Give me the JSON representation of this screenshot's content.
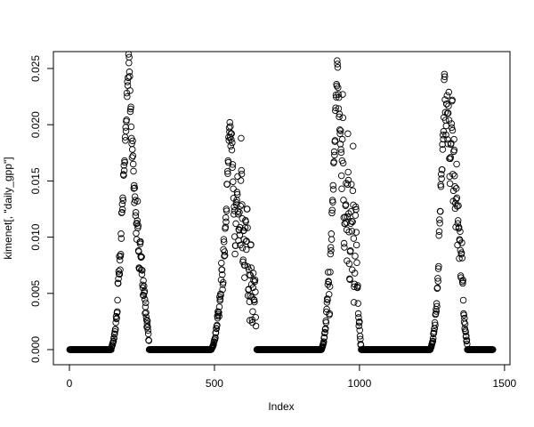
{
  "chart_data": {
    "type": "scatter",
    "title": "",
    "xlabel": "Index",
    "ylabel": "kimenet[, \"daily_gpp\"]",
    "xlim": [
      1,
      1460
    ],
    "ylim": [
      0,
      0.0255
    ],
    "x_ticks": [
      "0",
      "500",
      "1000",
      "1500"
    ],
    "y_ticks": [
      "0.000",
      "0.005",
      "0.010",
      "0.015",
      "0.020",
      "0.025"
    ],
    "grid": false,
    "marker": "open-circle",
    "point_color": "#000000",
    "zero_segments": [
      [
        1,
        144
      ],
      [
        275,
        489
      ],
      [
        646,
        869
      ],
      [
        1006,
        1244
      ],
      [
        1372,
        1460
      ]
    ],
    "seasons": [
      {
        "start": 145,
        "step": 3,
        "values": [
          0.0002,
          0.0004,
          0.0007,
          0.001,
          0.0016,
          0.0024,
          0.0028,
          0.0044,
          0.0063,
          0.0083,
          0.0071,
          0.0103,
          0.0122,
          0.0135,
          0.0155,
          0.0168,
          0.0186,
          0.0203,
          0.0225,
          0.0242,
          0.0255,
          0.0243,
          0.0214,
          0.0188,
          0.0178,
          0.0165,
          0.0146,
          0.0136,
          0.0122,
          0.0098,
          0.0132,
          0.0088,
          0.0072,
          0.0094,
          0.0082,
          0.0067,
          0.0055,
          0.0048,
          0.0052,
          0.0038,
          0.0029,
          0.0023,
          0.0017,
          0.0008
        ]
      },
      {
        "start": 490,
        "step": 3,
        "values": [
          0.0001,
          0.0002,
          0.0004,
          0.0007,
          0.001,
          0.0015,
          0.0021,
          0.0028,
          0.0033,
          0.0038,
          0.0045,
          0.0062,
          0.0071,
          0.0058,
          0.0098,
          0.0087,
          0.0109,
          0.0125,
          0.0147,
          0.0168,
          0.0186,
          0.0202,
          0.0181,
          0.0192,
          0.0162,
          0.0143,
          0.0127,
          0.0085,
          0.0112,
          0.0133,
          0.0154,
          0.0097,
          0.0122,
          0.0093,
          0.0188,
          0.0129,
          0.0078,
          0.0106,
          0.0064,
          0.0115,
          0.0089,
          0.0125,
          0.0048,
          0.0071,
          0.0026,
          0.0093,
          0.0058,
          0.0024,
          0.0068,
          0.0044,
          0.0062,
          0.0021
        ]
      },
      {
        "start": 870,
        "step": 3,
        "values": [
          0.0001,
          0.0003,
          0.0006,
          0.0011,
          0.0018,
          0.0024,
          0.0042,
          0.0058,
          0.006,
          0.0032,
          0.0085,
          0.0103,
          0.0124,
          0.0146,
          0.0167,
          0.0185,
          0.0215,
          0.0236,
          0.0254,
          0.0227,
          0.0207,
          0.0192,
          0.0178,
          0.0143,
          0.0227,
          0.0133,
          0.0091,
          0.0118,
          0.0148,
          0.0079,
          0.0192,
          0.0121,
          0.0063,
          0.0088,
          0.0147,
          0.0071,
          0.0181,
          0.0042,
          0.0068,
          0.0127,
          0.0093,
          0.0055,
          0.0032,
          0.0024,
          0.0012,
          0.0004
        ]
      },
      {
        "start": 1245,
        "step": 3,
        "values": [
          0.0001,
          0.0003,
          0.0006,
          0.001,
          0.0016,
          0.0024,
          0.0032,
          0.0041,
          0.0055,
          0.0072,
          0.0105,
          0.0123,
          0.0145,
          0.016,
          0.0178,
          0.0194,
          0.0245,
          0.0211,
          0.0199,
          0.0226,
          0.0183,
          0.0229,
          0.0154,
          0.0171,
          0.0201,
          0.0222,
          0.0132,
          0.0187,
          0.0145,
          0.0109,
          0.0165,
          0.0093,
          0.0128,
          0.0081,
          0.0105,
          0.0064,
          0.0095,
          0.0059,
          0.0032,
          0.0028,
          0.0017,
          0.0012,
          0.0005
        ]
      }
    ]
  }
}
